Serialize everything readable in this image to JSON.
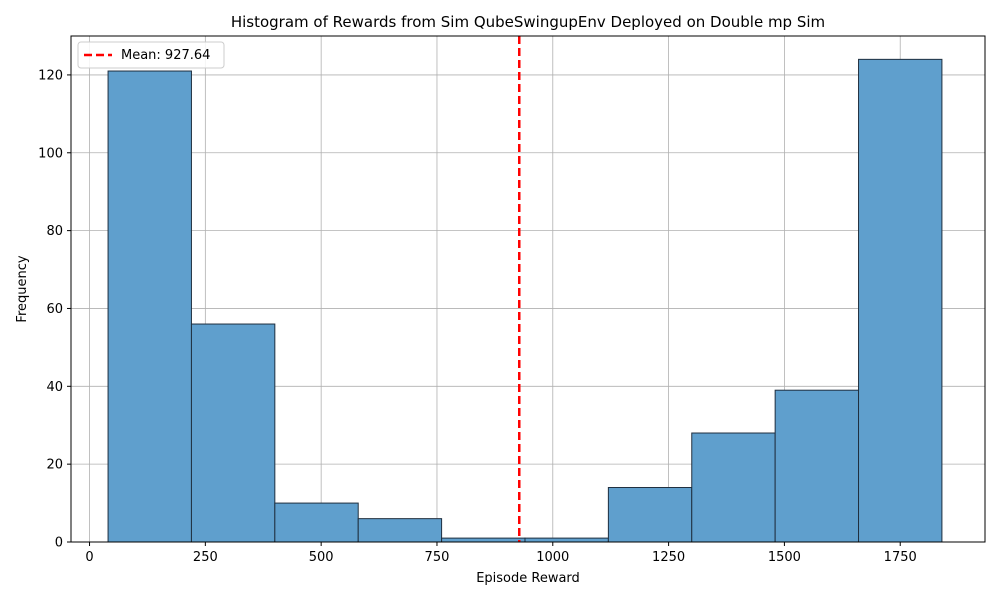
{
  "chart_data": {
    "type": "bar",
    "title": "Histogram of Rewards from Sim QubeSwingupEnv Deployed on Double mp Sim",
    "xlabel": "Episode Reward",
    "ylabel": "Frequency",
    "xlim": [
      -40,
      1933
    ],
    "ylim": [
      0,
      130
    ],
    "xticks": [
      0,
      250,
      500,
      750,
      1000,
      1250,
      1500,
      1750
    ],
    "yticks": [
      0,
      20,
      40,
      60,
      80,
      100,
      120
    ],
    "grid": true,
    "bin_edges": [
      40,
      220,
      400,
      580,
      760,
      940,
      1120,
      1300,
      1480,
      1660,
      1840
    ],
    "counts": [
      121,
      56,
      10,
      6,
      1,
      1,
      14,
      28,
      39,
      124
    ],
    "bar_color": "#5f9fcd",
    "edge_color": "#1f2f3f",
    "mean_line": {
      "value": 927.64,
      "color": "#ff0000",
      "label": "Mean: 927.64"
    },
    "legend_position": "upper-left"
  }
}
